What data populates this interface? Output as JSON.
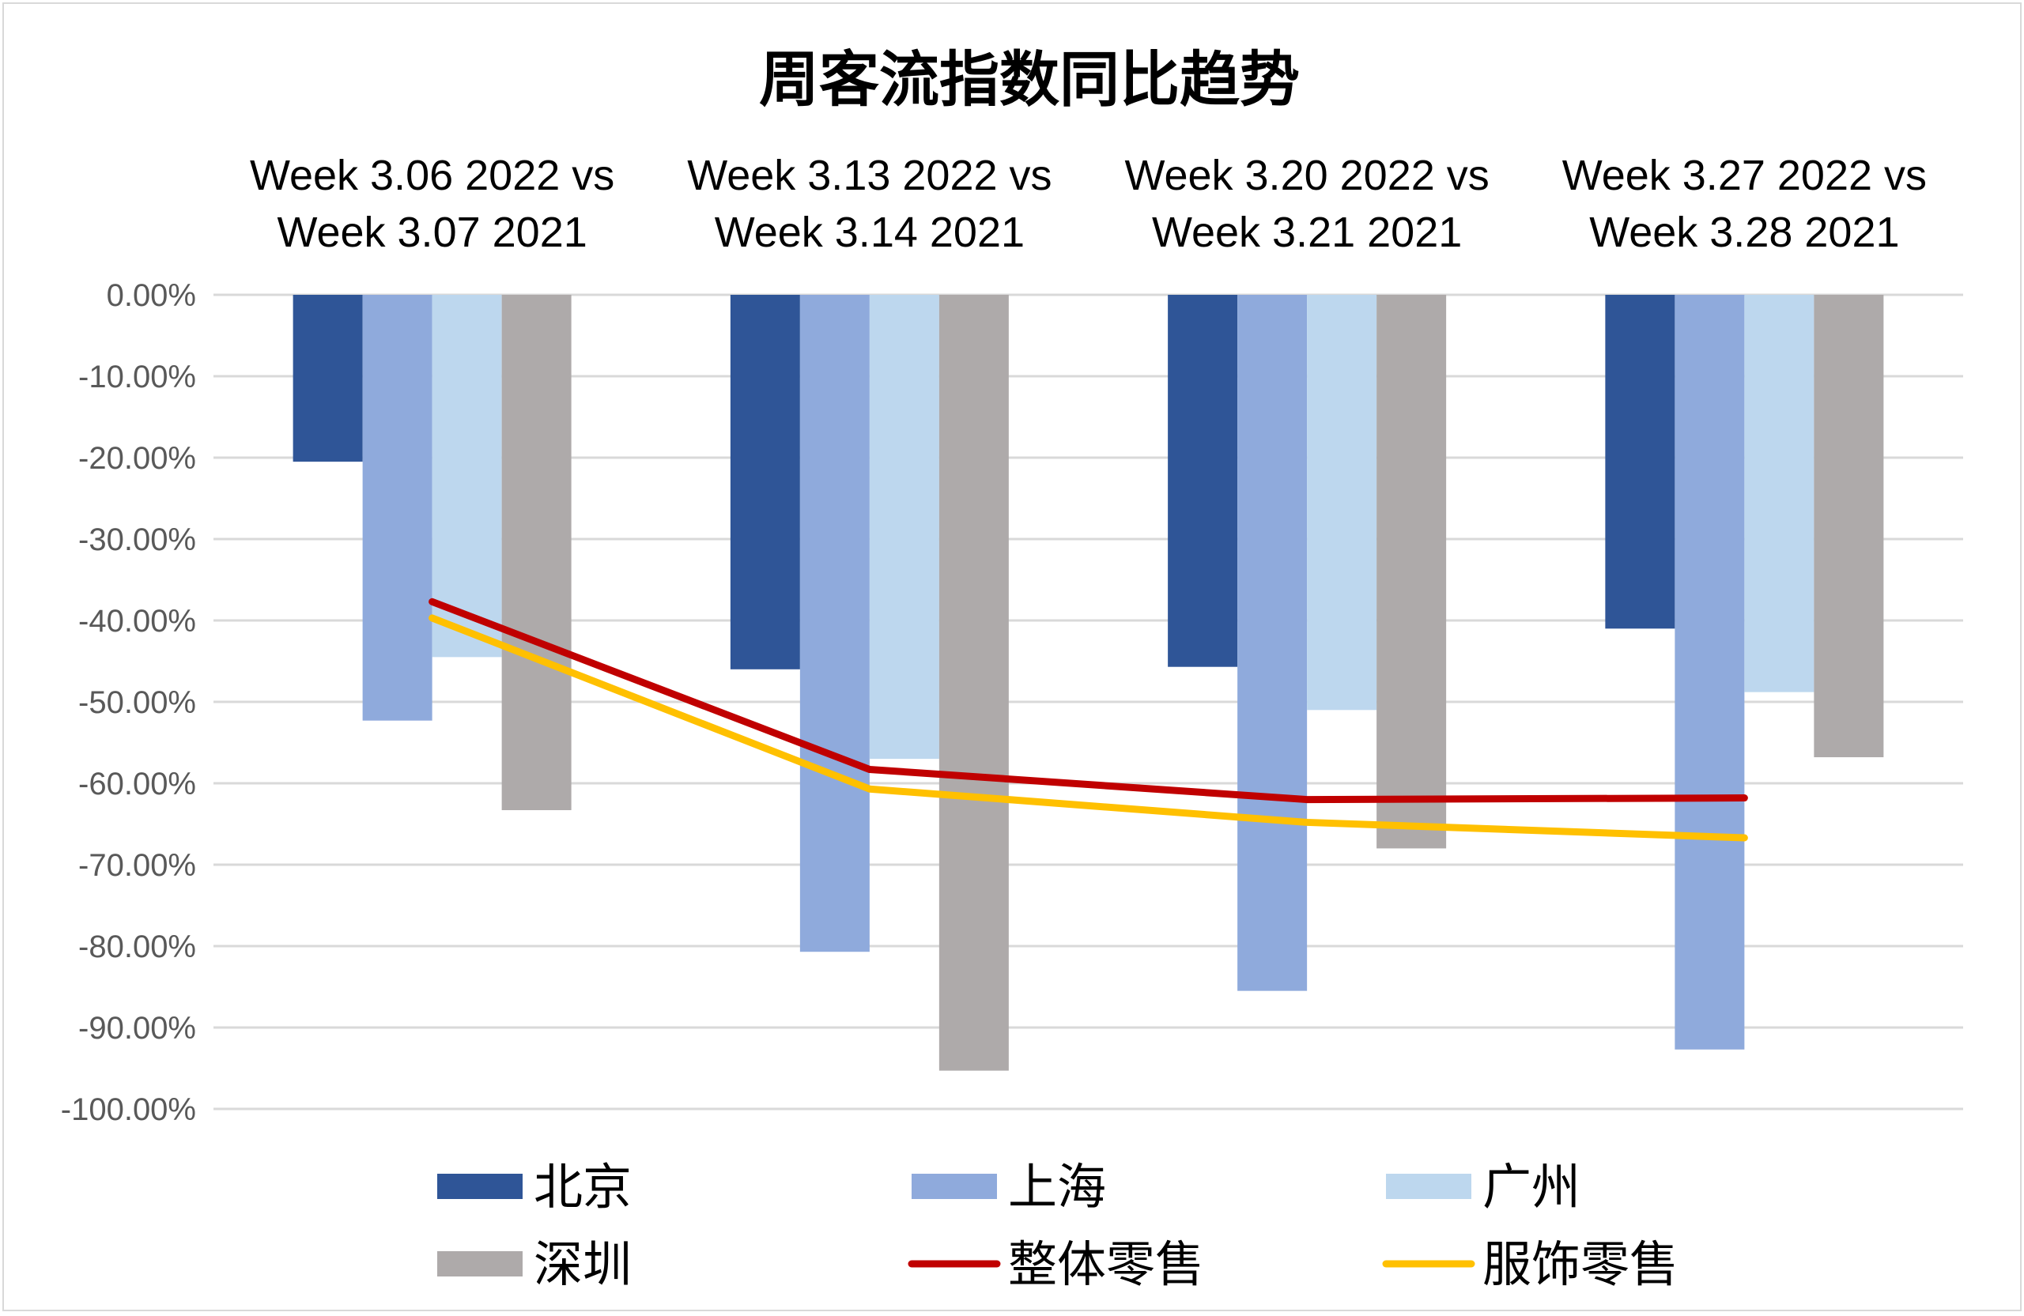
{
  "chart_data": {
    "type": "bar",
    "title": "周客流指数同比趋势",
    "categories": [
      [
        "Week 3.06 2022  vs",
        "Week 3.07 2021"
      ],
      [
        "Week 3.13 2022  vs",
        "Week 3.14 2021"
      ],
      [
        "Week 3.20 2022  vs",
        "Week 3.21 2021"
      ],
      [
        "Week 3.27 2022  vs",
        "Week 3.28 2021"
      ]
    ],
    "ylim": [
      -100,
      0
    ],
    "yticks": [
      0,
      -10,
      -20,
      -30,
      -40,
      -50,
      -60,
      -70,
      -80,
      -90,
      -100
    ],
    "ytick_labels": [
      "0.00%",
      "-10.00%",
      "-20.00%",
      "-30.00%",
      "-40.00%",
      "-50.00%",
      "-60.00%",
      "-70.00%",
      "-80.00%",
      "-90.00%",
      "-100.00%"
    ],
    "grid": true,
    "xaxis_position": "top",
    "legend_position": "bottom",
    "series": [
      {
        "name": "北京",
        "kind": "bar",
        "color": "#2f5597",
        "values": [
          -20.5,
          -46.0,
          -45.7,
          -41.0
        ]
      },
      {
        "name": "上海",
        "kind": "bar",
        "color": "#8faadc",
        "values": [
          -52.3,
          -80.7,
          -85.5,
          -92.7
        ]
      },
      {
        "name": "广州",
        "kind": "bar",
        "color": "#bdd7ee",
        "values": [
          -44.5,
          -57.0,
          -51.0,
          -48.8
        ]
      },
      {
        "name": "深圳",
        "kind": "bar",
        "color": "#aeaaaa",
        "values": [
          -63.3,
          -95.3,
          -68.0,
          -56.8
        ]
      },
      {
        "name": "整体零售",
        "kind": "line",
        "color": "#c00000",
        "values": [
          -37.7,
          -58.3,
          -62.0,
          -61.8
        ]
      },
      {
        "name": "服饰零售",
        "kind": "line",
        "color": "#ffc000",
        "values": [
          -39.7,
          -60.7,
          -64.8,
          -66.7
        ]
      }
    ]
  }
}
